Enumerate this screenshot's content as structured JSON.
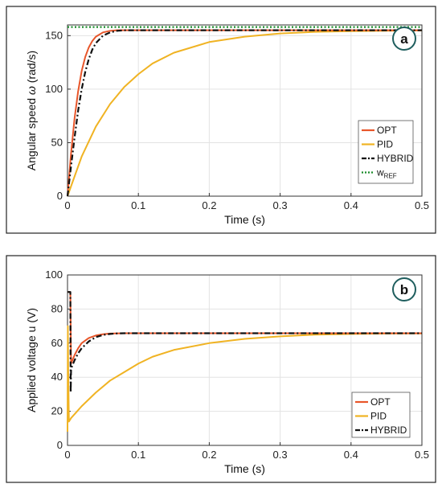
{
  "chart_data": [
    {
      "type": "line",
      "badge": "a",
      "ylabel_main": "Angular speed ",
      "ylabel_symbol": "ω",
      "ylabel_unit": " (rad/s)",
      "xlabel": "Time (s)",
      "xlim": [
        0,
        0.5
      ],
      "ylim": [
        0,
        160
      ],
      "xticks": [
        0,
        0.1,
        0.2,
        0.3,
        0.4,
        0.5
      ],
      "xtick_labels": [
        "0",
        "0.1",
        "0.2",
        "0.3",
        "0.4",
        "0.5"
      ],
      "yticks": [
        0,
        50,
        100,
        150
      ],
      "ytick_labels": [
        "0",
        "50",
        "100",
        "150"
      ],
      "grid": true,
      "legend_position": "bottom-right",
      "series": [
        {
          "name": "OPT",
          "color": "#e8562a",
          "style": "solid",
          "x": [
            0,
            0.005,
            0.01,
            0.015,
            0.02,
            0.025,
            0.03,
            0.035,
            0.04,
            0.05,
            0.06,
            0.07,
            0.1,
            0.2,
            0.3,
            0.4,
            0.5
          ],
          "y": [
            0,
            40,
            73,
            98,
            117,
            130,
            139,
            145,
            149,
            153,
            154.5,
            155,
            155,
            155,
            155,
            155,
            155
          ]
        },
        {
          "name": "PID",
          "color": "#f0b323",
          "style": "solid",
          "x": [
            0,
            0.02,
            0.04,
            0.06,
            0.08,
            0.1,
            0.12,
            0.15,
            0.2,
            0.25,
            0.3,
            0.35,
            0.4,
            0.45,
            0.5
          ],
          "y": [
            0,
            37,
            65,
            86,
            102,
            114,
            124,
            134,
            144,
            149,
            152,
            153.5,
            154.2,
            154.6,
            154.8
          ]
        },
        {
          "name": "HYBRID",
          "color": "#111111",
          "style": "dashdot",
          "x": [
            0,
            0.005,
            0.01,
            0.015,
            0.02,
            0.025,
            0.03,
            0.035,
            0.04,
            0.05,
            0.06,
            0.07,
            0.08,
            0.1,
            0.2,
            0.3,
            0.4,
            0.5
          ],
          "y": [
            0,
            28,
            55,
            80,
            100,
            116,
            128,
            137,
            143,
            150,
            153,
            154.5,
            155,
            155,
            155,
            155,
            155,
            155
          ]
        },
        {
          "name_main": "w",
          "name_sub": "REF",
          "color": "#1a8c2a",
          "style": "dotted",
          "x": [
            0,
            0.5
          ],
          "y": [
            158,
            158
          ]
        }
      ]
    },
    {
      "type": "line",
      "badge": "b",
      "ylabel": "Applied voltage u (V)",
      "xlabel": "Time (s)",
      "xlim": [
        0,
        0.5
      ],
      "ylim": [
        0,
        100
      ],
      "xticks": [
        0,
        0.1,
        0.2,
        0.3,
        0.4,
        0.5
      ],
      "xtick_labels": [
        "0",
        "0.1",
        "0.2",
        "0.3",
        "0.4",
        "0.5"
      ],
      "yticks": [
        0,
        20,
        40,
        60,
        80,
        100
      ],
      "ytick_labels": [
        "0",
        "20",
        "40",
        "60",
        "80",
        "100"
      ],
      "grid": true,
      "legend_position": "bottom-right",
      "series": [
        {
          "name": "OPT",
          "color": "#e8562a",
          "style": "solid",
          "x": [
            0,
            0.0005,
            0.001,
            0.002,
            0.003,
            0.004,
            0.005,
            0.01,
            0.015,
            0.02,
            0.03,
            0.04,
            0.05,
            0.06,
            0.08,
            0.1,
            0.2,
            0.3,
            0.4,
            0.5
          ],
          "y": [
            90,
            90,
            90,
            90,
            90,
            90,
            48,
            53,
            57,
            60,
            63,
            64.5,
            65.2,
            65.6,
            65.8,
            65.8,
            65.8,
            65.8,
            65.8,
            65.8
          ]
        },
        {
          "name": "PID",
          "color": "#f0b323",
          "style": "solid",
          "x": [
            0,
            0.0005,
            0.001,
            0.002,
            0.005,
            0.02,
            0.04,
            0.06,
            0.08,
            0.1,
            0.12,
            0.15,
            0.2,
            0.25,
            0.3,
            0.35,
            0.4,
            0.45,
            0.5
          ],
          "y": [
            8,
            70,
            45,
            14,
            16,
            23,
            31,
            38,
            43,
            48,
            52,
            56,
            60,
            62.5,
            64,
            65,
            65.4,
            65.6,
            65.7
          ]
        },
        {
          "name": "HYBRID",
          "color": "#111111",
          "style": "dashdot",
          "x": [
            0,
            0.001,
            0.002,
            0.003,
            0.004,
            0.0045,
            0.005,
            0.006,
            0.008,
            0.01,
            0.015,
            0.02,
            0.03,
            0.04,
            0.05,
            0.06,
            0.07,
            0.08,
            0.1,
            0.2,
            0.3,
            0.4,
            0.5
          ],
          "y": [
            90,
            90,
            90,
            90,
            90,
            31,
            44,
            46,
            48,
            50,
            54,
            57,
            61,
            63.5,
            64.8,
            65.4,
            65.7,
            65.8,
            65.8,
            65.8,
            65.8,
            65.8,
            65.8
          ]
        }
      ]
    }
  ]
}
